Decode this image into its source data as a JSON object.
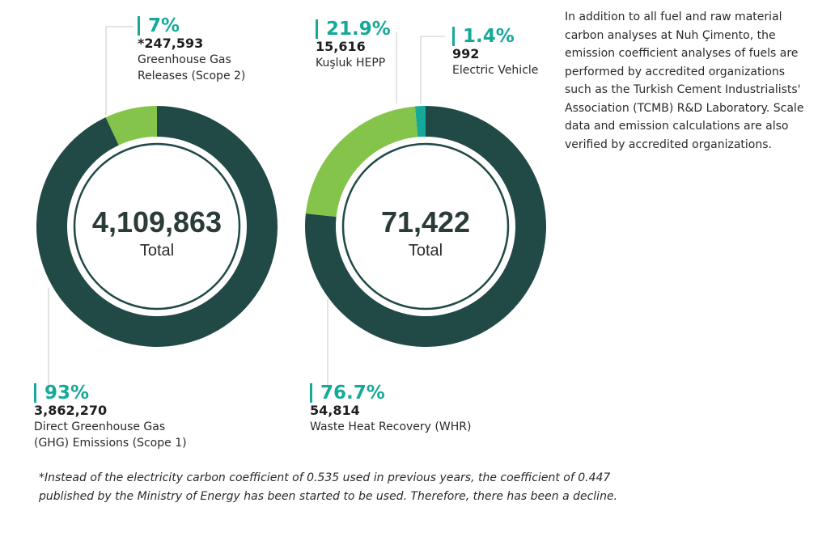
{
  "colors": {
    "dark": "#214a47",
    "light": "#85c44b",
    "teal": "#16a99a",
    "leader": "#c9c9c9"
  },
  "chart_data": [
    {
      "type": "donut",
      "center_value": "4,109,863",
      "center_label": "Total",
      "slices": [
        {
          "percent_label": "93%",
          "percent": 93,
          "value_label": "3,862,270",
          "value": 3862270,
          "description": "Direct Greenhouse Gas (GHG) Emissions (Scope 1)",
          "description_lines": [
            "Direct Greenhouse Gas",
            "(GHG) Emissions (Scope 1)"
          ],
          "color": "#214a47"
        },
        {
          "percent_label": "7%",
          "percent": 7,
          "value_label": "*247,593",
          "value": 247593,
          "description": "Greenhouse Gas Releases (Scope 2)",
          "description_lines": [
            "Greenhouse Gas",
            "Releases (Scope 2)"
          ],
          "color": "#85c44b"
        }
      ]
    },
    {
      "type": "donut",
      "center_value": "71,422",
      "center_label": "Total",
      "slices": [
        {
          "percent_label": "76.7%",
          "percent": 76.7,
          "value_label": "54,814",
          "value": 54814,
          "description": "Waste Heat Recovery (WHR)",
          "description_lines": [
            "Waste Heat Recovery (WHR)"
          ],
          "color": "#214a47"
        },
        {
          "percent_label": "21.9%",
          "percent": 21.9,
          "value_label": "15,616",
          "value": 15616,
          "description": "Kuşluk HEPP",
          "description_lines": [
            "Kuşluk HEPP"
          ],
          "color": "#85c44b"
        },
        {
          "percent_label": "1.4%",
          "percent": 1.4,
          "value_label": "992",
          "value": 992,
          "description": "Electric Vehicle",
          "description_lines": [
            "Electric Vehicle"
          ],
          "color": "#16a99a"
        }
      ]
    }
  ],
  "note": "In addition to all fuel and raw material carbon analyses at Nuh Çimento, the emission coefficient analyses of fuels are performed by accredited organizations such as the Turkish Cement Industrialists' Association (TCMB) R&D Laboratory. Scale data and emission calculations are also verified by accredited organizations.",
  "footnote": "*Instead of the electricity carbon coefficient of 0.535 used in previous years, the coefficient of 0.447 published by the Ministry of Energy has been started to be used. Therefore, there has been a decline."
}
